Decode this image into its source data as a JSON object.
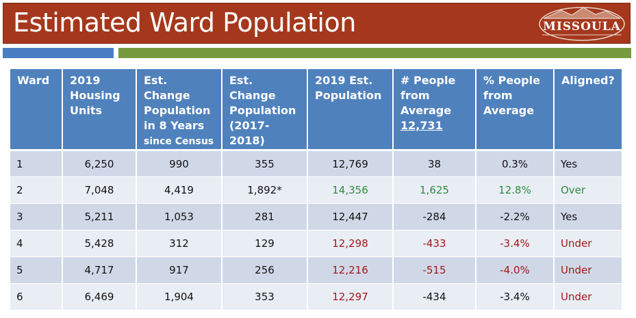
{
  "title": "Estimated Ward Population",
  "logo_text": "MISSOULA",
  "colors": {
    "title_bg": "#a5381c",
    "header_bg": "#4f81bd",
    "over": "#2e8b3e",
    "under": "#a01818"
  },
  "table": {
    "headers": {
      "ward": "Ward",
      "housing_units": "2019 Housing Units",
      "est_change_line1": "Est. Change Population in 8 Years",
      "est_change_line2": "since Census",
      "est_change_1718_line1": "Est. Change Population",
      "est_change_1718_line2": "(2017-2018)",
      "est_pop": "2019 Est. Population",
      "people_from_avg_line1": "# People from Average",
      "people_from_avg_value": "12,731",
      "pct_from_avg": "% People from Average",
      "aligned": "Aligned?"
    },
    "rows": [
      {
        "ward": "1",
        "housing": "6,250",
        "change8": "990",
        "change1718": "355",
        "pop": "12,769",
        "people": "38",
        "pct": "0.3%",
        "aligned": "Yes",
        "status": "neutral"
      },
      {
        "ward": "2",
        "housing": "7,048",
        "change8": "4,419",
        "change1718": "1,892*",
        "pop": "14,356",
        "people": "1,625",
        "pct": "12.8%",
        "aligned": "Over",
        "status": "over"
      },
      {
        "ward": "3",
        "housing": "5,211",
        "change8": "1,053",
        "change1718": "281",
        "pop": "12,447",
        "people": "-284",
        "pct": "-2.2%",
        "aligned": "Yes",
        "status": "neutral"
      },
      {
        "ward": "4",
        "housing": "5,428",
        "change8": "312",
        "change1718": "129",
        "pop": "12,298",
        "people": "-433",
        "pct": "-3.4%",
        "aligned": "Under",
        "status": "under"
      },
      {
        "ward": "5",
        "housing": "4,717",
        "change8": "917",
        "change1718": "256",
        "pop": "12,216",
        "people": "-515",
        "pct": "-4.0%",
        "aligned": "Under",
        "status": "under"
      },
      {
        "ward": "6",
        "housing": "6,469",
        "change8": "1,904",
        "change1718": "353",
        "pop": "12,297",
        "people": "-434",
        "pct": "-3.4%",
        "aligned": "Under",
        "status": "under-partial"
      }
    ]
  }
}
